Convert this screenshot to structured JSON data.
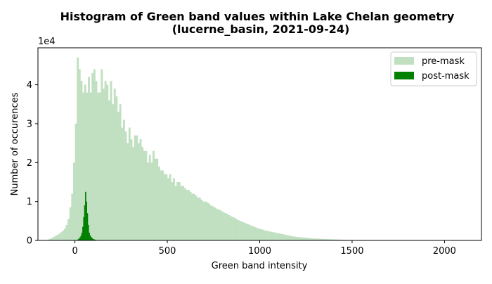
{
  "chart_data": {
    "type": "histogram",
    "title_line1": "Histogram of Green band values within Lake Chelan geometry",
    "title_line2": "(lucerne_basin, 2021-09-24)",
    "xlabel": "Green band intensity",
    "ylabel": "Number of occurences",
    "y_offset_label": "1e4",
    "xlim": [
      -200,
      2200
    ],
    "ylim": [
      0,
      49500
    ],
    "x_ticks": [
      0,
      500,
      1000,
      1500,
      2000
    ],
    "x_tick_labels": [
      "0",
      "500",
      "1000",
      "1500",
      "2000"
    ],
    "y_ticks": [
      0,
      10000,
      20000,
      30000,
      40000
    ],
    "y_tick_labels": [
      "0",
      "1",
      "2",
      "3",
      "4"
    ],
    "bin_width": 10,
    "legend_position": "upper right",
    "series": [
      {
        "name": "pre-mask",
        "label": "pre-mask",
        "color": "#c1e0c1",
        "bin_start": -150,
        "values": [
          200,
          400,
          600,
          900,
          1200,
          1400,
          1700,
          2100,
          2500,
          3000,
          4000,
          5500,
          8500,
          12000,
          20000,
          30000,
          47000,
          44000,
          41000,
          38000,
          40000,
          38000,
          42000,
          38000,
          43000,
          44000,
          41000,
          38000,
          38000,
          44000,
          39000,
          41000,
          40000,
          36000,
          41000,
          35000,
          39000,
          37000,
          33000,
          35000,
          29000,
          31000,
          28000,
          25000,
          29000,
          26000,
          24000,
          27000,
          27000,
          25000,
          26000,
          24000,
          23000,
          23000,
          20000,
          22000,
          20000,
          23000,
          21000,
          21000,
          19000,
          18000,
          18000,
          17000,
          17000,
          16000,
          17000,
          15000,
          16000,
          14000,
          15000,
          15000,
          14000,
          14000,
          13500,
          13000,
          13000,
          12500,
          12000,
          12000,
          11500,
          11000,
          11000,
          10500,
          10000,
          10000,
          9800,
          9500,
          9000,
          8800,
          8500,
          8200,
          8000,
          7800,
          7500,
          7200,
          7000,
          6800,
          6500,
          6200,
          6000,
          5800,
          5500,
          5200,
          5000,
          4800,
          4600,
          4400,
          4200,
          4000,
          3800,
          3600,
          3400,
          3200,
          3000,
          2900,
          2800,
          2600,
          2500,
          2400,
          2300,
          2200,
          2100,
          2000,
          1900,
          1800,
          1700,
          1600,
          1500,
          1400,
          1300,
          1200,
          1100,
          1000,
          950,
          900,
          850,
          800,
          750,
          700,
          650,
          600,
          550,
          500,
          480,
          460,
          440,
          420,
          400,
          380,
          360,
          340,
          320,
          300,
          280,
          260,
          240,
          220,
          200,
          180,
          160,
          140,
          120,
          100,
          90,
          80,
          70,
          60,
          50,
          40,
          30,
          20,
          10,
          5
        ]
      },
      {
        "name": "post-mask",
        "label": "post-mask",
        "color": "#008000",
        "bin_start": 0,
        "bin_width": 5,
        "values": [
          0,
          0,
          100,
          300,
          500,
          800,
          1200,
          2000,
          3500,
          6000,
          9000,
          12500,
          10000,
          7000,
          4000,
          2000,
          1300,
          900,
          600,
          400,
          300,
          200,
          150,
          100,
          80,
          60,
          40,
          30,
          20,
          10
        ]
      }
    ]
  }
}
